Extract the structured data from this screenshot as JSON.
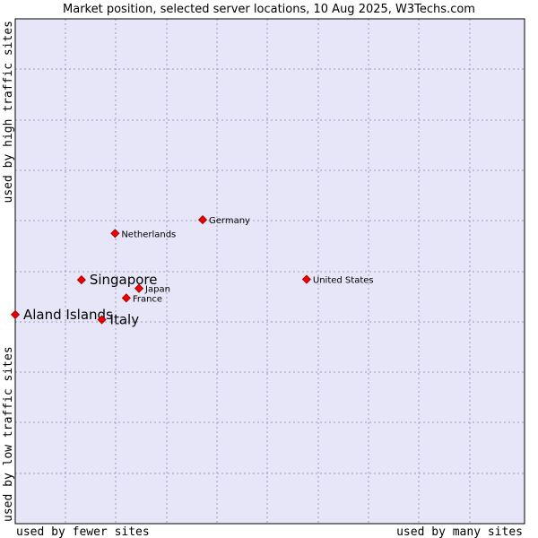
{
  "chart_data": {
    "type": "scatter",
    "title": "Market position, selected server locations, 10 Aug 2025, W3Techs.com",
    "xlabel_left": "used by fewer sites",
    "xlabel_right": "used by many sites",
    "ylabel_bottom": "used by low traffic sites",
    "ylabel_top": "used by high traffic sites",
    "xlim": [
      0,
      100
    ],
    "ylim": [
      0,
      100
    ],
    "grid": true,
    "colors": {
      "plot_bg": "#e6e6f8",
      "grid": "#9a9ab8",
      "point_fill": "#ee0000",
      "point_stroke": "#990000",
      "frame": "#000000"
    },
    "points": [
      {
        "name": "Netherlands",
        "x": 19.6,
        "y": 57.5,
        "size": "small"
      },
      {
        "name": "Germany",
        "x": 36.8,
        "y": 60.2,
        "size": "small"
      },
      {
        "name": "Singapore",
        "x": 13.0,
        "y": 48.3,
        "size": "large"
      },
      {
        "name": "Japan",
        "x": 24.3,
        "y": 46.6,
        "size": "small"
      },
      {
        "name": "France",
        "x": 21.8,
        "y": 44.7,
        "size": "small"
      },
      {
        "name": "United States",
        "x": 57.2,
        "y": 48.4,
        "size": "small"
      },
      {
        "name": "Aland Islands",
        "x": 0.0,
        "y": 41.4,
        "size": "large"
      },
      {
        "name": "Italy",
        "x": 17.0,
        "y": 40.4,
        "size": "large"
      }
    ]
  }
}
